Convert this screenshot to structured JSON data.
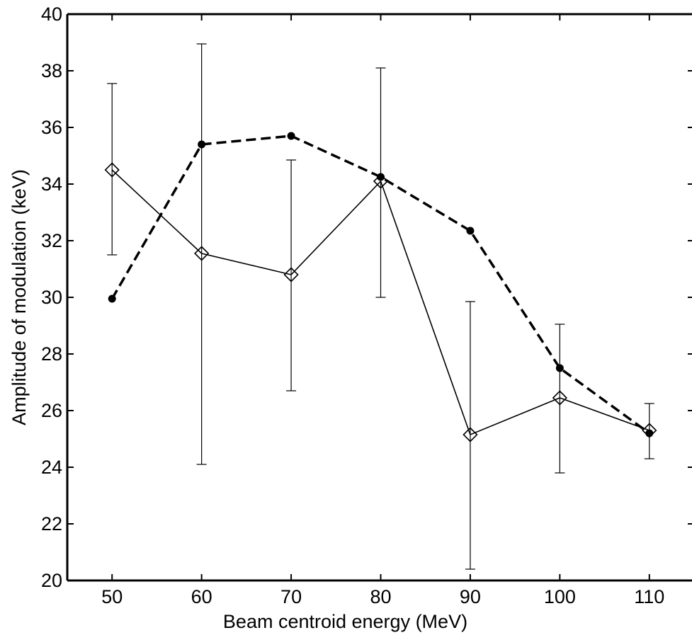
{
  "chart_data": {
    "type": "line",
    "title": "",
    "xlabel": "Beam centroid energy (MeV)",
    "ylabel": "Amplitude of modulation (keV)",
    "xlim": [
      45,
      115
    ],
    "ylim": [
      20,
      40
    ],
    "x_ticks": [
      "50",
      "60",
      "70",
      "80",
      "90",
      "100",
      "110"
    ],
    "y_ticks": [
      "20",
      "22",
      "24",
      "26",
      "28",
      "30",
      "32",
      "34",
      "36",
      "38",
      "40"
    ],
    "grid": false,
    "legend": "none",
    "x": [
      50,
      60,
      70,
      80,
      90,
      100,
      110
    ],
    "series": [
      {
        "style": "solid-diamond",
        "color": "#000000",
        "values": [
          34.5,
          31.55,
          30.8,
          34.1,
          25.15,
          26.45,
          25.3
        ],
        "error_low": [
          31.5,
          24.1,
          26.7,
          30.0,
          20.4,
          23.8,
          24.3
        ],
        "error_high": [
          37.55,
          38.95,
          34.85,
          38.1,
          29.85,
          29.05,
          26.25
        ]
      },
      {
        "style": "dashed-dot",
        "color": "#000000",
        "values": [
          29.95,
          35.4,
          35.7,
          34.25,
          32.35,
          27.5,
          25.2
        ]
      }
    ]
  }
}
